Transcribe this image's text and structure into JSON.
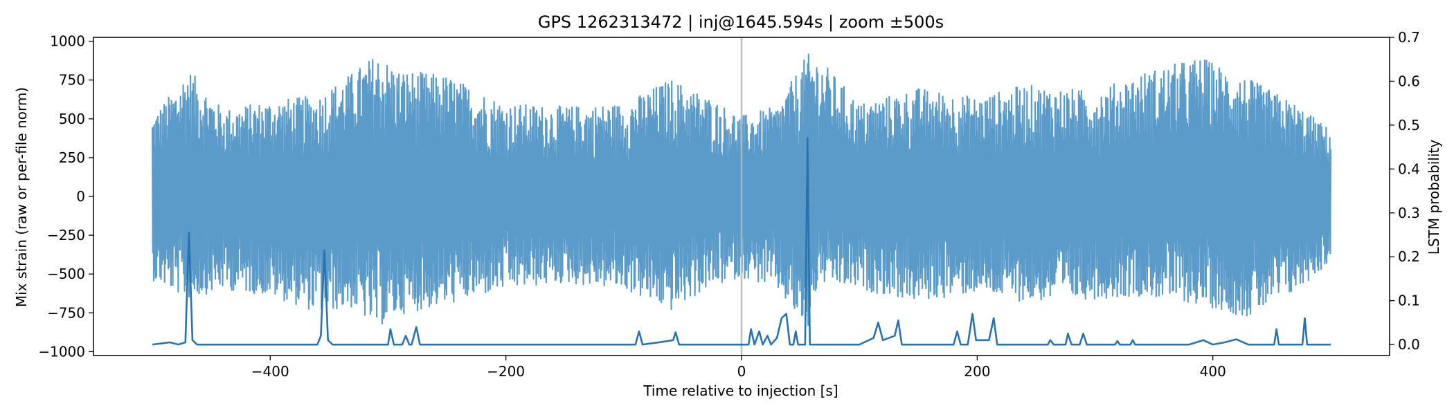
{
  "chart_data": {
    "type": "line",
    "title": "GPS 1262313472 | inj@1645.594s | zoom ±500s",
    "xlabel": "Time relative to injection [s]",
    "ylabel_left": "Mix strain (raw or per-file norm)",
    "ylabel_right": "LSTM probability",
    "xlim": [
      -550,
      550
    ],
    "ylim_left": [
      -1025,
      1025
    ],
    "ylim_right": [
      -0.025,
      0.7
    ],
    "xticks": [
      -400,
      -200,
      0,
      200,
      400
    ],
    "xtick_labels": [
      "−400",
      "−200",
      "0",
      "200",
      "400"
    ],
    "yticks_left": [
      -1000,
      -750,
      -500,
      -250,
      0,
      250,
      500,
      750,
      1000
    ],
    "ytick_labels_left": [
      "−1000",
      "−750",
      "−500",
      "−250",
      "0",
      "250",
      "500",
      "750",
      "1000"
    ],
    "yticks_right": [
      0.0,
      0.1,
      0.2,
      0.3,
      0.4,
      0.5,
      0.6,
      0.7
    ],
    "ytick_labels_right": [
      "0.0",
      "0.1",
      "0.2",
      "0.3",
      "0.4",
      "0.5",
      "0.6",
      "0.7"
    ],
    "injection_marker_x": 0,
    "grid": false,
    "colors": {
      "strain": "#5b9bc9",
      "probability": "#2a72ad",
      "injection_line": "#b8b8b8"
    },
    "series": [
      {
        "axis": "left",
        "x_range": [
          -500,
          500
        ],
        "envelope_points": [
          {
            "x": -500,
            "max": 520,
            "min": -540
          },
          {
            "x": -480,
            "max": 700,
            "min": -620
          },
          {
            "x": -470,
            "max": 830,
            "min": -660
          },
          {
            "x": -440,
            "max": 560,
            "min": -600
          },
          {
            "x": -400,
            "max": 620,
            "min": -640
          },
          {
            "x": -360,
            "max": 650,
            "min": -750
          },
          {
            "x": -330,
            "max": 800,
            "min": -720
          },
          {
            "x": -310,
            "max": 920,
            "min": -850
          },
          {
            "x": -290,
            "max": 820,
            "min": -760
          },
          {
            "x": -250,
            "max": 780,
            "min": -700
          },
          {
            "x": -200,
            "max": 600,
            "min": -600
          },
          {
            "x": -150,
            "max": 580,
            "min": -560
          },
          {
            "x": -100,
            "max": 600,
            "min": -600
          },
          {
            "x": -60,
            "max": 760,
            "min": -740
          },
          {
            "x": -30,
            "max": 650,
            "min": -600
          },
          {
            "x": 0,
            "max": 520,
            "min": -520
          },
          {
            "x": 30,
            "max": 580,
            "min": -600
          },
          {
            "x": 56,
            "max": 920,
            "min": -880
          },
          {
            "x": 65,
            "max": 900,
            "min": -560
          },
          {
            "x": 100,
            "max": 600,
            "min": -600
          },
          {
            "x": 150,
            "max": 700,
            "min": -680
          },
          {
            "x": 200,
            "max": 640,
            "min": -620
          },
          {
            "x": 240,
            "max": 720,
            "min": -680
          },
          {
            "x": 300,
            "max": 680,
            "min": -660
          },
          {
            "x": 340,
            "max": 800,
            "min": -640
          },
          {
            "x": 390,
            "max": 900,
            "min": -700
          },
          {
            "x": 430,
            "max": 760,
            "min": -780
          },
          {
            "x": 470,
            "max": 600,
            "min": -620
          },
          {
            "x": 500,
            "max": 430,
            "min": -420
          }
        ]
      },
      {
        "axis": "right",
        "baseline": 0.0,
        "points": [
          [
            -500,
            0.0
          ],
          [
            -485,
            0.005
          ],
          [
            -478,
            0.0
          ],
          [
            -472,
            0.005
          ],
          [
            -469,
            0.255
          ],
          [
            -466,
            0.01
          ],
          [
            -462,
            0.0
          ],
          [
            -360,
            0.0
          ],
          [
            -357,
            0.02
          ],
          [
            -354,
            0.215
          ],
          [
            -351,
            0.01
          ],
          [
            -347,
            0.0
          ],
          [
            -300,
            0.0
          ],
          [
            -298,
            0.035
          ],
          [
            -295,
            0.0
          ],
          [
            -288,
            0.0
          ],
          [
            -285,
            0.02
          ],
          [
            -282,
            0.0
          ],
          [
            -280,
            0.0
          ],
          [
            -276,
            0.04
          ],
          [
            -273,
            0.0
          ],
          [
            -200,
            0.0
          ],
          [
            -90,
            0.0
          ],
          [
            -87,
            0.03
          ],
          [
            -84,
            0.0
          ],
          [
            -70,
            0.005
          ],
          [
            -58,
            0.01
          ],
          [
            -56,
            0.028
          ],
          [
            -53,
            0.0
          ],
          [
            -10,
            0.0
          ],
          [
            6,
            0.0
          ],
          [
            8,
            0.035
          ],
          [
            11,
            0.0
          ],
          [
            15,
            0.03
          ],
          [
            18,
            0.0
          ],
          [
            22,
            0.02
          ],
          [
            25,
            0.0
          ],
          [
            30,
            0.015
          ],
          [
            34,
            0.06
          ],
          [
            38,
            0.07
          ],
          [
            41,
            0.0
          ],
          [
            44,
            0.0
          ],
          [
            46,
            0.03
          ],
          [
            48,
            0.0
          ],
          [
            51,
            0.0
          ],
          [
            54,
            0.0
          ],
          [
            56,
            0.47
          ],
          [
            58,
            0.0
          ],
          [
            62,
            0.0
          ],
          [
            100,
            0.0
          ],
          [
            112,
            0.015
          ],
          [
            116,
            0.05
          ],
          [
            120,
            0.01
          ],
          [
            130,
            0.02
          ],
          [
            133,
            0.055
          ],
          [
            136,
            0.0
          ],
          [
            180,
            0.0
          ],
          [
            183,
            0.03
          ],
          [
            186,
            0.0
          ],
          [
            192,
            0.0
          ],
          [
            196,
            0.07
          ],
          [
            199,
            0.01
          ],
          [
            210,
            0.01
          ],
          [
            214,
            0.06
          ],
          [
            217,
            0.0
          ],
          [
            260,
            0.0
          ],
          [
            262,
            0.01
          ],
          [
            265,
            0.0
          ],
          [
            275,
            0.0
          ],
          [
            277,
            0.025
          ],
          [
            280,
            0.0
          ],
          [
            287,
            0.0
          ],
          [
            290,
            0.025
          ],
          [
            293,
            0.0
          ],
          [
            317,
            0.0
          ],
          [
            319,
            0.008
          ],
          [
            321,
            0.0
          ],
          [
            330,
            0.0
          ],
          [
            332,
            0.01
          ],
          [
            334,
            0.0
          ],
          [
            380,
            0.0
          ],
          [
            392,
            0.01
          ],
          [
            400,
            0.0
          ],
          [
            410,
            0.005
          ],
          [
            420,
            0.012
          ],
          [
            430,
            0.0
          ],
          [
            452,
            0.0
          ],
          [
            454,
            0.035
          ],
          [
            456,
            0.0
          ],
          [
            476,
            0.0
          ],
          [
            478,
            0.06
          ],
          [
            480,
            0.0
          ],
          [
            500,
            0.0
          ]
        ]
      }
    ]
  }
}
